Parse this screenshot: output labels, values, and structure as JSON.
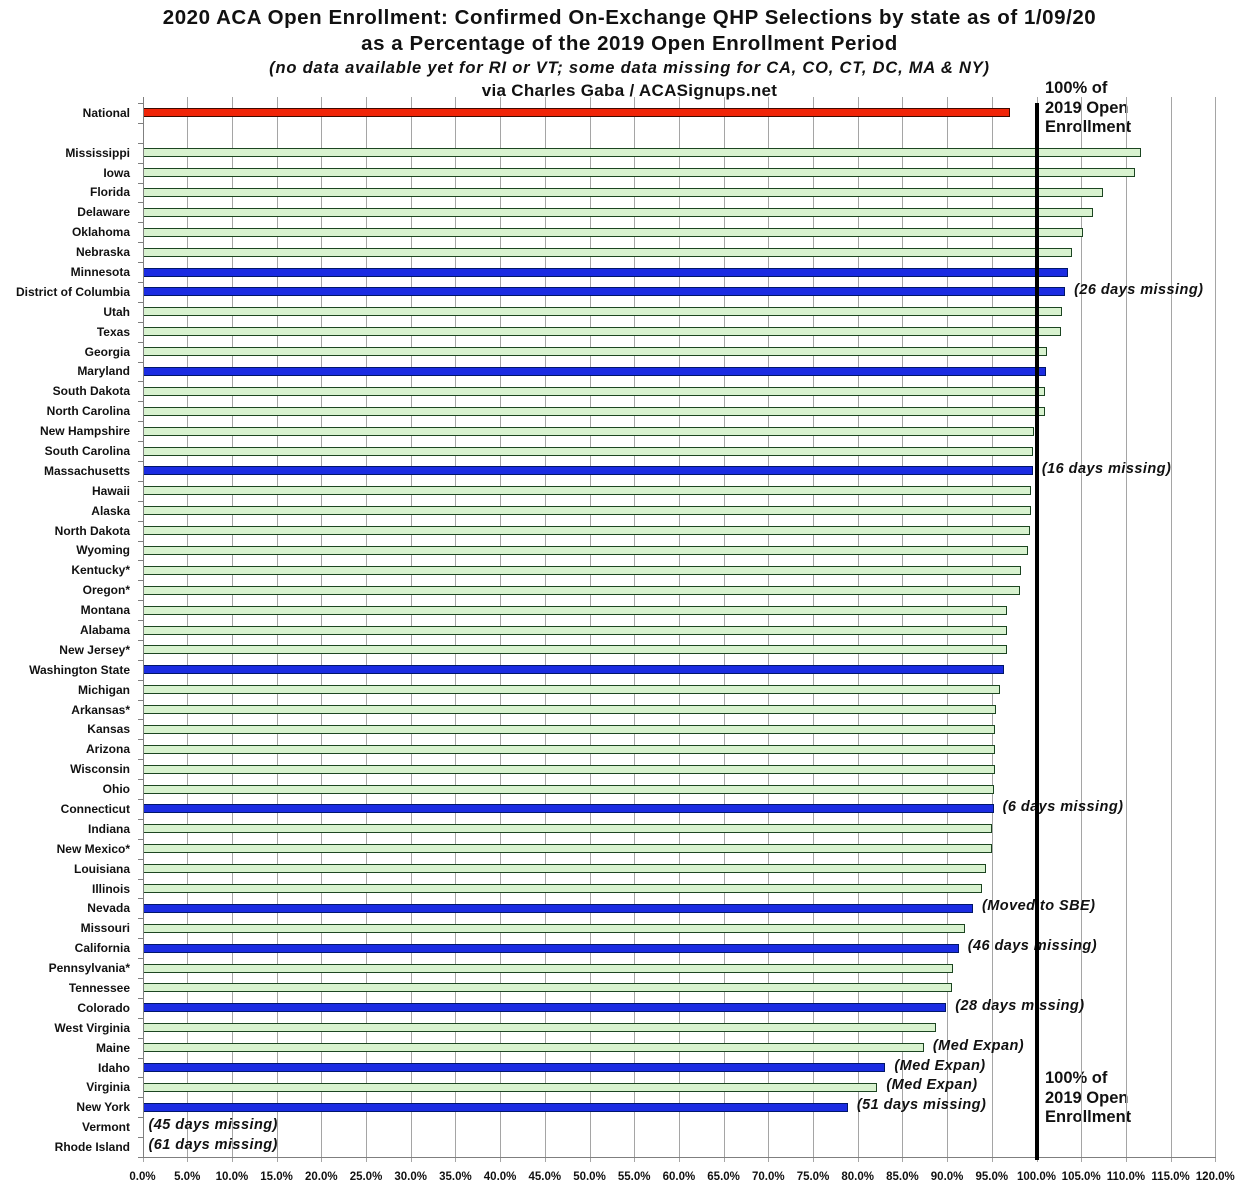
{
  "title": {
    "line1": "2020 ACA Open Enrollment: Confirmed On-Exchange QHP Selections by state as of 1/09/20",
    "line2": "as a Percentage of the 2019 Open Enrollment Period",
    "line3": "(no data available yet for RI or VT; some data missing for CA, CO, CT, DC, MA & NY)",
    "line4": "via Charles Gaba / ACASignups.net"
  },
  "reference_label_top": {
    "line1": "100% of",
    "line2": "2019 Open",
    "line3": "Enrollment"
  },
  "reference_label_bottom": {
    "line1": "100% of",
    "line2": "2019 Open",
    "line3": "Enrollment"
  },
  "colors": {
    "national_fill": "#f02508",
    "national_border": "#3d0a00",
    "hcgov_fill": "#d8f2cf",
    "hcgov_border": "#1c4521",
    "sbe_fill": "#1b2ce2",
    "sbe_border": "#001668",
    "gridline": "#a5a5a5",
    "axis": "#7f7f7f",
    "reference_line": "#000000",
    "text": "#111111"
  },
  "chart_data": {
    "type": "bar",
    "orientation": "horizontal",
    "title": "2020 ACA Open Enrollment: Confirmed On-Exchange QHP Selections by state as of 1/09/20 as a Percentage of the 2019 Open Enrollment Period",
    "subtitle": "(no data available yet for RI or VT; some data missing for CA, CO, CT, DC, MA & NY)",
    "source": "via Charles Gaba / ACASignups.net",
    "xlabel": "",
    "ylabel": "",
    "xlim": [
      0,
      120
    ],
    "x_tick_step": 5,
    "x_tick_labels": [
      "0.0%",
      "5.0%",
      "10.0%",
      "15.0%",
      "20.0%",
      "25.0%",
      "30.0%",
      "35.0%",
      "40.0%",
      "45.0%",
      "50.0%",
      "55.0%",
      "60.0%",
      "65.0%",
      "70.0%",
      "75.0%",
      "80.0%",
      "85.0%",
      "90.0%",
      "95.0%",
      "100.0%",
      "105.0%",
      "110.0%",
      "115.0%",
      "120.0%"
    ],
    "grid": true,
    "reference_line": {
      "value": 100,
      "label": "100% of 2019 Open Enrollment"
    },
    "rows": [
      {
        "label": "National",
        "value": 97.0,
        "type": "national"
      },
      {
        "label": "",
        "value": null,
        "type": "spacer"
      },
      {
        "label": "Mississippi",
        "value": 111.7,
        "type": "hcgov"
      },
      {
        "label": "Iowa",
        "value": 111.0,
        "type": "hcgov"
      },
      {
        "label": "Florida",
        "value": 107.4,
        "type": "hcgov"
      },
      {
        "label": "Delaware",
        "value": 106.3,
        "type": "hcgov"
      },
      {
        "label": "Oklahoma",
        "value": 105.2,
        "type": "hcgov"
      },
      {
        "label": "Nebraska",
        "value": 104.0,
        "type": "hcgov"
      },
      {
        "label": "Minnesota",
        "value": 103.5,
        "type": "sbe"
      },
      {
        "label": "District of Columbia",
        "value": 103.2,
        "type": "sbe",
        "annotation": "(26 days missing)"
      },
      {
        "label": "Utah",
        "value": 102.9,
        "type": "hcgov"
      },
      {
        "label": "Texas",
        "value": 102.7,
        "type": "hcgov"
      },
      {
        "label": "Georgia",
        "value": 101.2,
        "type": "hcgov"
      },
      {
        "label": "Maryland",
        "value": 101.1,
        "type": "sbe"
      },
      {
        "label": "South Dakota",
        "value": 101.0,
        "type": "hcgov"
      },
      {
        "label": "North Carolina",
        "value": 100.9,
        "type": "hcgov"
      },
      {
        "label": "New Hampshire",
        "value": 99.7,
        "type": "hcgov"
      },
      {
        "label": "South Carolina",
        "value": 99.6,
        "type": "hcgov"
      },
      {
        "label": "Massachusetts",
        "value": 99.6,
        "type": "sbe",
        "annotation": "(16 days missing)"
      },
      {
        "label": "Hawaii",
        "value": 99.4,
        "type": "hcgov"
      },
      {
        "label": "Alaska",
        "value": 99.4,
        "type": "hcgov"
      },
      {
        "label": "North Dakota",
        "value": 99.3,
        "type": "hcgov"
      },
      {
        "label": "Wyoming",
        "value": 99.0,
        "type": "hcgov"
      },
      {
        "label": "Kentucky*",
        "value": 98.3,
        "type": "hcgov"
      },
      {
        "label": "Oregon*",
        "value": 98.1,
        "type": "hcgov"
      },
      {
        "label": "Montana",
        "value": 96.7,
        "type": "hcgov"
      },
      {
        "label": "Alabama",
        "value": 96.7,
        "type": "hcgov"
      },
      {
        "label": "New Jersey*",
        "value": 96.7,
        "type": "hcgov"
      },
      {
        "label": "Washington State",
        "value": 96.4,
        "type": "sbe"
      },
      {
        "label": "Michigan",
        "value": 95.9,
        "type": "hcgov"
      },
      {
        "label": "Arkansas*",
        "value": 95.5,
        "type": "hcgov"
      },
      {
        "label": "Kansas",
        "value": 95.4,
        "type": "hcgov"
      },
      {
        "label": "Arizona",
        "value": 95.4,
        "type": "hcgov"
      },
      {
        "label": "Wisconsin",
        "value": 95.3,
        "type": "hcgov"
      },
      {
        "label": "Ohio",
        "value": 95.2,
        "type": "hcgov"
      },
      {
        "label": "Connecticut",
        "value": 95.2,
        "type": "sbe",
        "annotation": "(6 days missing)"
      },
      {
        "label": "Indiana",
        "value": 95.0,
        "type": "hcgov"
      },
      {
        "label": "New Mexico*",
        "value": 95.0,
        "type": "hcgov"
      },
      {
        "label": "Louisiana",
        "value": 94.4,
        "type": "hcgov"
      },
      {
        "label": "Illinois",
        "value": 93.9,
        "type": "hcgov"
      },
      {
        "label": "Nevada",
        "value": 92.9,
        "type": "sbe",
        "annotation": "(Moved to SBE)"
      },
      {
        "label": "Missouri",
        "value": 92.0,
        "type": "hcgov"
      },
      {
        "label": "California",
        "value": 91.3,
        "type": "sbe",
        "annotation": "(46 days missing)"
      },
      {
        "label": "Pennsylvania*",
        "value": 90.7,
        "type": "hcgov"
      },
      {
        "label": "Tennessee",
        "value": 90.5,
        "type": "hcgov"
      },
      {
        "label": "Colorado",
        "value": 89.9,
        "type": "sbe",
        "annotation": "(28 days missing)"
      },
      {
        "label": "West Virginia",
        "value": 88.7,
        "type": "hcgov"
      },
      {
        "label": "Maine",
        "value": 87.4,
        "type": "hcgov",
        "annotation": "(Med Expan)"
      },
      {
        "label": "Idaho",
        "value": 83.1,
        "type": "sbe",
        "annotation": "(Med Expan)"
      },
      {
        "label": "Virginia",
        "value": 82.2,
        "type": "hcgov",
        "annotation": "(Med Expan)"
      },
      {
        "label": "New York",
        "value": 78.9,
        "type": "sbe",
        "annotation": "(51 days missing)"
      },
      {
        "label": "Vermont",
        "value": 0,
        "type": "none",
        "annotation": "(45 days missing)"
      },
      {
        "label": "Rhode Island",
        "value": 0,
        "type": "none",
        "annotation": "(61 days missing)"
      }
    ]
  }
}
